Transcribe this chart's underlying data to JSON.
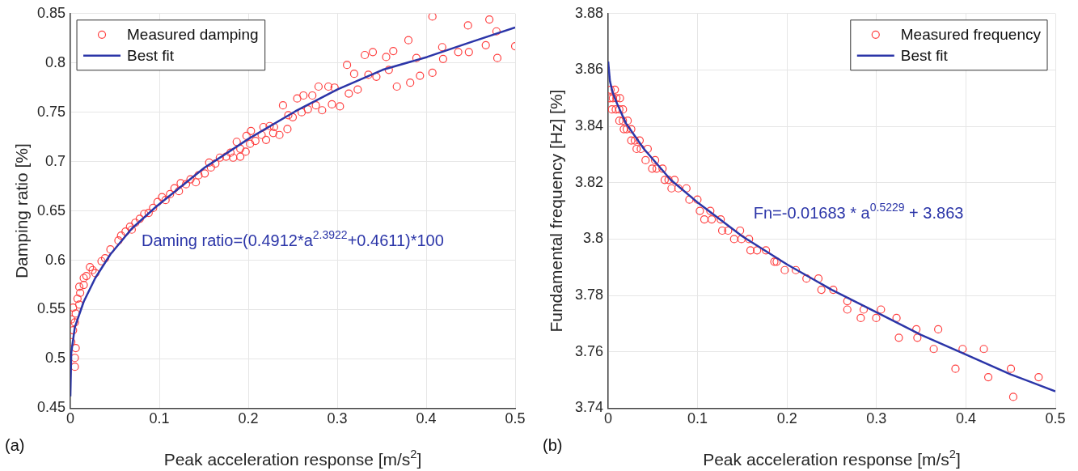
{
  "chart_data": [
    {
      "type": "scatter",
      "xlabel": "Peak acceleration response [m/s$^{2}$]",
      "ylabel": "Damping ratio [%]",
      "xlim": [
        0,
        0.5
      ],
      "xticks": [
        0,
        0.1,
        0.2,
        0.3,
        0.4,
        0.5
      ],
      "ylim": [
        0.45,
        0.85
      ],
      "yticks": [
        0.45,
        0.5,
        0.55,
        0.6,
        0.65,
        0.7,
        0.75,
        0.8,
        0.85
      ],
      "grid": true,
      "legend": "top left",
      "annotations": [
        "Daming ratio=(0.4912*a$^{2.3922}$+0.4611)*100",
        "(a)"
      ],
      "series": [
        {
          "name": "Measured damping",
          "marker": "circle",
          "color": "#ff4040",
          "x": [
            0.407,
            0.447,
            0.471,
            0.479,
            0.5,
            0.467,
            0.48,
            0.448,
            0.436,
            0.418,
            0.419,
            0.407,
            0.389,
            0.393,
            0.382,
            0.367,
            0.38,
            0.363,
            0.355,
            0.358,
            0.34,
            0.331,
            0.335,
            0.344,
            0.311,
            0.319,
            0.323,
            0.313,
            0.303,
            0.297,
            0.29,
            0.294,
            0.279,
            0.283,
            0.276,
            0.267,
            0.26,
            0.272,
            0.262,
            0.255,
            0.239,
            0.245,
            0.25,
            0.244,
            0.235,
            0.228,
            0.229,
            0.224,
            0.217,
            0.22,
            0.215,
            0.208,
            0.202,
            0.198,
            0.203,
            0.197,
            0.191,
            0.187,
            0.191,
            0.183,
            0.18,
            0.175,
            0.168,
            0.163,
            0.156,
            0.158,
            0.151,
            0.144,
            0.141,
            0.135,
            0.13,
            0.124,
            0.122,
            0.117,
            0.112,
            0.107,
            0.103,
            0.098,
            0.093,
            0.088,
            0.083,
            0.078,
            0.073,
            0.067,
            0.062,
            0.057,
            0.054,
            0.069,
            0.045,
            0.035,
            0.025,
            0.018,
            0.015,
            0.011,
            0.01,
            0.006,
            0.005,
            0.003,
            0.001,
            0.006,
            0.005,
            0.005,
            0.001,
            0.008,
            0.028,
            0.039,
            0.022,
            0.015,
            0.01,
            0.003
          ],
          "values": [
            0.847,
            0.838,
            0.844,
            0.832,
            0.817,
            0.818,
            0.805,
            0.811,
            0.811,
            0.816,
            0.804,
            0.79,
            0.805,
            0.787,
            0.78,
            0.776,
            0.823,
            0.812,
            0.806,
            0.793,
            0.811,
            0.808,
            0.788,
            0.786,
            0.798,
            0.789,
            0.773,
            0.769,
            0.756,
            0.775,
            0.776,
            0.758,
            0.776,
            0.752,
            0.757,
            0.753,
            0.75,
            0.767,
            0.767,
            0.764,
            0.757,
            0.747,
            0.745,
            0.733,
            0.727,
            0.729,
            0.735,
            0.736,
            0.735,
            0.722,
            0.727,
            0.721,
            0.718,
            0.726,
            0.731,
            0.71,
            0.713,
            0.72,
            0.705,
            0.704,
            0.709,
            0.705,
            0.704,
            0.698,
            0.699,
            0.694,
            0.688,
            0.686,
            0.679,
            0.682,
            0.677,
            0.678,
            0.67,
            0.673,
            0.667,
            0.661,
            0.664,
            0.659,
            0.653,
            0.648,
            0.647,
            0.642,
            0.638,
            0.634,
            0.629,
            0.625,
            0.62,
            0.631,
            0.611,
            0.599,
            0.59,
            0.584,
            0.575,
            0.567,
            0.555,
            0.546,
            0.537,
            0.529,
            0.517,
            0.511,
            0.501,
            0.492,
            0.54,
            0.561,
            0.587,
            0.602,
            0.593,
            0.582,
            0.573,
            0.552
          ]
        },
        {
          "name": "Best fit",
          "type": "line",
          "color": "#2b35a8",
          "x": [
            0,
            0.001,
            0.005,
            0.015,
            0.028,
            0.045,
            0.069,
            0.096,
            0.151,
            0.202,
            0.253,
            0.3,
            0.351,
            0.401,
            0.45,
            0.5
          ],
          "values": [
            0.462,
            0.506,
            0.532,
            0.558,
            0.582,
            0.606,
            0.632,
            0.654,
            0.694,
            0.724,
            0.751,
            0.773,
            0.793,
            0.806,
            0.821,
            0.836
          ]
        }
      ]
    },
    {
      "type": "scatter",
      "xlabel": "Peak acceleration response [m/s$^{2}$]",
      "ylabel": "Fundamental frequency [Hz] [%]",
      "xlim": [
        0,
        0.5
      ],
      "xticks": [
        0,
        0.1,
        0.2,
        0.3,
        0.4,
        0.5
      ],
      "ylim": [
        3.74,
        3.88
      ],
      "yticks": [
        3.74,
        3.76,
        3.78,
        3.8,
        3.82,
        3.84,
        3.86,
        3.88
      ],
      "grid": true,
      "legend": "top right",
      "annotations": [
        "Fn=-0.01683 * a$^{0.5229}$ + 3.863",
        "(b)"
      ],
      "series": [
        {
          "name": "Measured frequency",
          "marker": "circle",
          "color": "#ff4040",
          "x": [
            0.0026,
            0.0075,
            0.002,
            0.0052,
            0.0092,
            0.0132,
            0.0042,
            0.0085,
            0.0125,
            0.0165,
            0.0125,
            0.0165,
            0.0218,
            0.0175,
            0.0208,
            0.0258,
            0.0258,
            0.0298,
            0.0352,
            0.0318,
            0.0365,
            0.0442,
            0.0418,
            0.0525,
            0.0492,
            0.0542,
            0.0608,
            0.0632,
            0.0675,
            0.0742,
            0.0708,
            0.0785,
            0.0875,
            0.0908,
            0.0998,
            0.1025,
            0.1142,
            0.1075,
            0.1158,
            0.1258,
            0.1275,
            0.1341,
            0.1475,
            0.1408,
            0.1491,
            0.1575,
            0.1591,
            0.1665,
            0.1764,
            0.1858,
            0.1884,
            0.1974,
            0.2098,
            0.2217,
            0.2351,
            0.2384,
            0.2517,
            0.2674,
            0.2674,
            0.2857,
            0.305,
            0.2824,
            0.2997,
            0.3224,
            0.3446,
            0.369,
            0.325,
            0.3457,
            0.364,
            0.3963,
            0.42,
            0.3883,
            0.4503,
            0.425,
            0.4813,
            0.4529
          ],
          "values": [
            3.853,
            3.853,
            3.85,
            3.85,
            3.85,
            3.85,
            3.846,
            3.846,
            3.846,
            3.846,
            3.842,
            3.842,
            3.842,
            3.839,
            3.839,
            3.839,
            3.835,
            3.835,
            3.835,
            3.832,
            3.832,
            3.832,
            3.828,
            3.828,
            3.825,
            3.825,
            3.825,
            3.821,
            3.821,
            3.821,
            3.818,
            3.818,
            3.818,
            3.814,
            3.814,
            3.81,
            3.81,
            3.807,
            3.807,
            3.807,
            3.803,
            3.803,
            3.803,
            3.8,
            3.8,
            3.8,
            3.796,
            3.796,
            3.796,
            3.792,
            3.792,
            3.789,
            3.789,
            3.786,
            3.786,
            3.782,
            3.782,
            3.778,
            3.775,
            3.775,
            3.775,
            3.772,
            3.772,
            3.772,
            3.768,
            3.768,
            3.765,
            3.765,
            3.761,
            3.761,
            3.761,
            3.754,
            3.754,
            3.751,
            3.751,
            3.744
          ]
        },
        {
          "name": "Best fit",
          "type": "line",
          "color": "#2b35a8",
          "x": [
            0,
            0.002,
            0.005,
            0.01,
            0.02,
            0.04,
            0.07,
            0.1,
            0.15,
            0.2,
            0.25,
            0.3,
            0.35,
            0.4,
            0.45,
            0.5
          ],
          "values": [
            3.863,
            3.856,
            3.852,
            3.848,
            3.841,
            3.832,
            3.821,
            3.813,
            3.801,
            3.791,
            3.782,
            3.774,
            3.766,
            3.759,
            3.752,
            3.746
          ]
        }
      ]
    }
  ]
}
